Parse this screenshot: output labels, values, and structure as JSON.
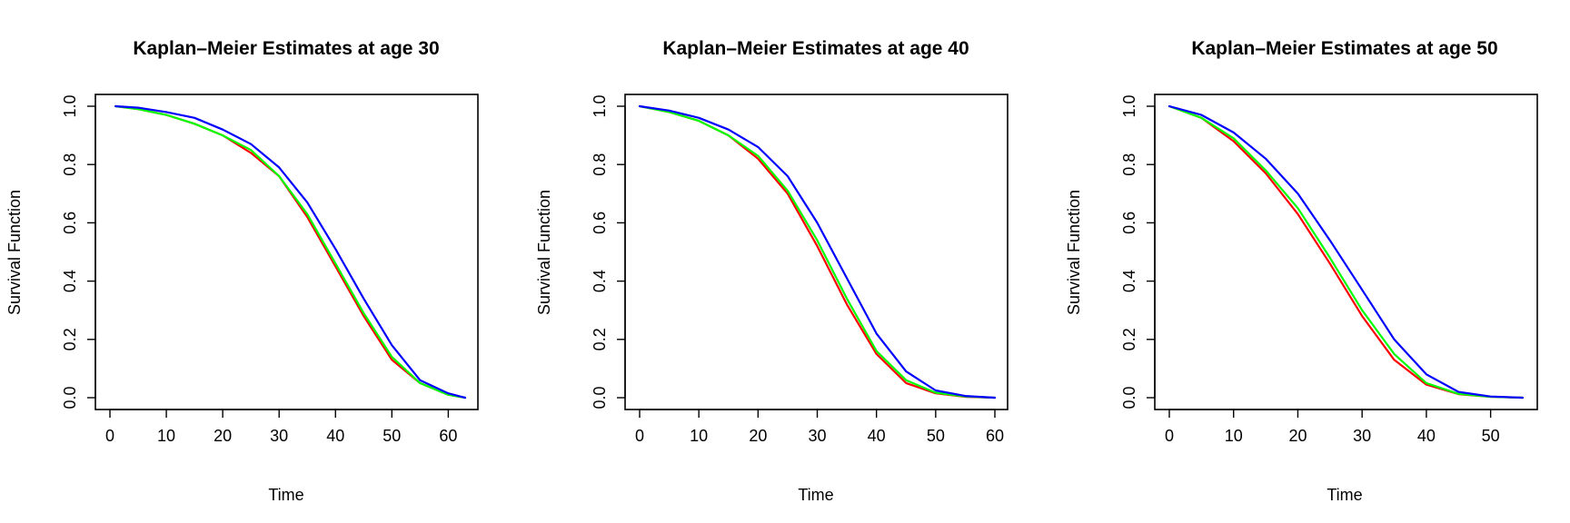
{
  "chart_data": [
    {
      "type": "line",
      "title": "Kaplan–Meier Estimates at age 30",
      "xlabel": "Time",
      "ylabel": "Survival Function",
      "xlim": [
        0,
        63
      ],
      "ylim": [
        0,
        1
      ],
      "xticks": [
        0,
        10,
        20,
        30,
        40,
        50,
        60
      ],
      "yticks": [
        0.0,
        0.2,
        0.4,
        0.6,
        0.8,
        1.0
      ],
      "xtick_labels": [
        "0",
        "10",
        "20",
        "30",
        "40",
        "50",
        "60"
      ],
      "ytick_labels": [
        "0.0",
        "0.2",
        "0.4",
        "0.6",
        "0.8",
        "1.0"
      ],
      "grid": false,
      "legend": "none",
      "series": [
        {
          "color": "#ff0000",
          "x": [
            1,
            5,
            10,
            15,
            20,
            25,
            30,
            35,
            40,
            45,
            50,
            55,
            60,
            63
          ],
          "y": [
            1.0,
            0.99,
            0.97,
            0.94,
            0.9,
            0.84,
            0.76,
            0.62,
            0.45,
            0.28,
            0.13,
            0.05,
            0.01,
            0.0
          ]
        },
        {
          "color": "#00ff00",
          "x": [
            1,
            5,
            10,
            15,
            20,
            25,
            30,
            35,
            40,
            45,
            50,
            55,
            60,
            63
          ],
          "y": [
            1.0,
            0.99,
            0.97,
            0.94,
            0.9,
            0.85,
            0.76,
            0.63,
            0.46,
            0.29,
            0.14,
            0.05,
            0.01,
            0.0
          ]
        },
        {
          "color": "#0000ff",
          "x": [
            1,
            5,
            10,
            15,
            20,
            25,
            30,
            35,
            40,
            45,
            50,
            55,
            60,
            63
          ],
          "y": [
            1.0,
            0.995,
            0.98,
            0.96,
            0.92,
            0.87,
            0.79,
            0.67,
            0.51,
            0.34,
            0.18,
            0.06,
            0.015,
            0.0
          ]
        }
      ]
    },
    {
      "type": "line",
      "title": "Kaplan–Meier Estimates at age 40",
      "xlabel": "Time",
      "ylabel": "Survival Function",
      "xlim": [
        0,
        60
      ],
      "ylim": [
        0,
        1
      ],
      "xticks": [
        0,
        10,
        20,
        30,
        40,
        50,
        60
      ],
      "yticks": [
        0.0,
        0.2,
        0.4,
        0.6,
        0.8,
        1.0
      ],
      "xtick_labels": [
        "0",
        "10",
        "20",
        "30",
        "40",
        "50",
        "60"
      ],
      "ytick_labels": [
        "0.0",
        "0.2",
        "0.4",
        "0.6",
        "0.8",
        "1.0"
      ],
      "grid": false,
      "legend": "none",
      "series": [
        {
          "color": "#ff0000",
          "x": [
            0,
            5,
            10,
            15,
            20,
            25,
            30,
            35,
            40,
            45,
            50,
            55,
            60
          ],
          "y": [
            1.0,
            0.98,
            0.95,
            0.9,
            0.82,
            0.7,
            0.52,
            0.32,
            0.15,
            0.05,
            0.015,
            0.003,
            0.0
          ]
        },
        {
          "color": "#00ff00",
          "x": [
            0,
            5,
            10,
            15,
            20,
            25,
            30,
            35,
            40,
            45,
            50,
            55,
            60
          ],
          "y": [
            1.0,
            0.98,
            0.95,
            0.9,
            0.83,
            0.71,
            0.54,
            0.34,
            0.16,
            0.06,
            0.017,
            0.004,
            0.0
          ]
        },
        {
          "color": "#0000ff",
          "x": [
            0,
            5,
            10,
            15,
            20,
            25,
            30,
            35,
            40,
            45,
            50,
            55,
            60
          ],
          "y": [
            1.0,
            0.985,
            0.96,
            0.92,
            0.86,
            0.76,
            0.6,
            0.41,
            0.22,
            0.09,
            0.025,
            0.006,
            0.0
          ]
        }
      ]
    },
    {
      "type": "line",
      "title": "Kaplan–Meier Estimates at age 50",
      "xlabel": "Time",
      "ylabel": "Survival Function",
      "xlim": [
        0,
        55
      ],
      "ylim": [
        0,
        1
      ],
      "xticks": [
        0,
        10,
        20,
        30,
        40,
        50
      ],
      "yticks": [
        0.0,
        0.2,
        0.4,
        0.6,
        0.8,
        1.0
      ],
      "xtick_labels": [
        "0",
        "10",
        "20",
        "30",
        "40",
        "50"
      ],
      "ytick_labels": [
        "0.0",
        "0.2",
        "0.4",
        "0.6",
        "0.8",
        "1.0"
      ],
      "grid": false,
      "legend": "none",
      "series": [
        {
          "color": "#ff0000",
          "x": [
            0,
            5,
            10,
            15,
            20,
            25,
            30,
            35,
            40,
            45,
            50,
            55
          ],
          "y": [
            1.0,
            0.96,
            0.88,
            0.77,
            0.63,
            0.46,
            0.28,
            0.13,
            0.045,
            0.012,
            0.003,
            0.0
          ]
        },
        {
          "color": "#00ff00",
          "x": [
            0,
            5,
            10,
            15,
            20,
            25,
            30,
            35,
            40,
            45,
            50,
            55
          ],
          "y": [
            1.0,
            0.96,
            0.89,
            0.78,
            0.65,
            0.48,
            0.3,
            0.15,
            0.05,
            0.013,
            0.003,
            0.0
          ]
        },
        {
          "color": "#0000ff",
          "x": [
            0,
            5,
            10,
            15,
            20,
            25,
            30,
            35,
            40,
            45,
            50,
            55
          ],
          "y": [
            1.0,
            0.97,
            0.91,
            0.82,
            0.7,
            0.54,
            0.37,
            0.2,
            0.08,
            0.02,
            0.004,
            0.0
          ]
        }
      ]
    }
  ]
}
